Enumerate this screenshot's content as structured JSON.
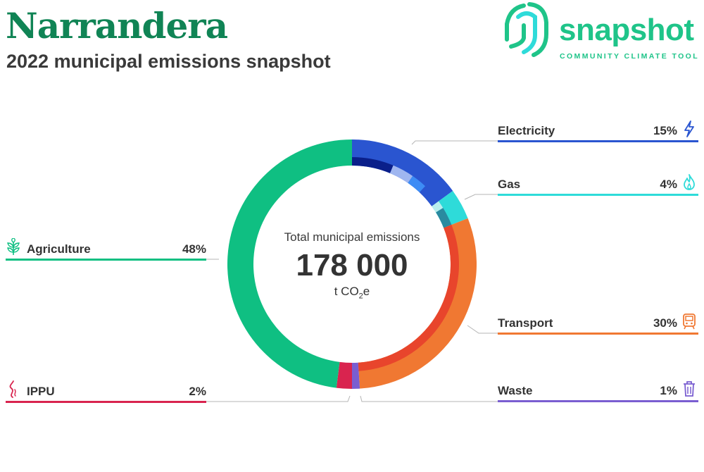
{
  "header": {
    "title": "Narrandera",
    "subtitle": "2022 municipal emissions snapshot"
  },
  "logo": {
    "word": "snapshot",
    "tagline": "COMMUNITY CLIMATE TOOL",
    "color": "#1fc489"
  },
  "center": {
    "label": "Total municipal emissions",
    "value": "178 000",
    "unit_prefix": "t CO",
    "unit_sub": "2",
    "unit_suffix": "e"
  },
  "categories": {
    "electricity": {
      "label": "Electricity",
      "percent": "15%",
      "icon": "lightning-icon",
      "color": "#2a55d0"
    },
    "gas": {
      "label": "Gas",
      "percent": "4%",
      "icon": "flame-icon",
      "color": "#2edbd9"
    },
    "transport": {
      "label": "Transport",
      "percent": "30%",
      "icon": "train-icon",
      "color": "#f07832"
    },
    "waste": {
      "label": "Waste",
      "percent": "1%",
      "icon": "trash-icon",
      "color": "#7a5ed1"
    },
    "agriculture": {
      "label": "Agriculture",
      "percent": "48%",
      "icon": "leaf-icon",
      "color": "#0fbf82"
    },
    "ippu": {
      "label": "IPPU",
      "percent": "2%",
      "icon": "smoke-icon",
      "color": "#d9244f"
    }
  },
  "chart_data": {
    "type": "pie",
    "style": "donut",
    "title": "Total municipal emissions",
    "total": 178000,
    "unit": "t CO2e",
    "series": [
      {
        "name": "Electricity",
        "value": 15,
        "color": "#2a55d0"
      },
      {
        "name": "Gas",
        "value": 4,
        "color": "#2edbd9"
      },
      {
        "name": "Transport",
        "value": 30,
        "color": "#f07832"
      },
      {
        "name": "Waste",
        "value": 1,
        "color": "#7a5ed1"
      },
      {
        "name": "IPPU",
        "value": 2,
        "color": "#d9244f"
      },
      {
        "name": "Agriculture",
        "value": 48,
        "color": "#0fbf82"
      }
    ],
    "inner_sub_segments": [
      {
        "parent": "Electricity",
        "share": 0.42,
        "color": "#0a1f8a"
      },
      {
        "parent": "Electricity",
        "share": 0.22,
        "color": "#9fb6f0"
      },
      {
        "parent": "Electricity",
        "share": 0.16,
        "color": "#3d8cf5"
      },
      {
        "parent": "Electricity",
        "share": 0.2,
        "color": "#2a55d0"
      },
      {
        "parent": "Gas",
        "share": 0.3,
        "color": "#b8eeee"
      },
      {
        "parent": "Gas",
        "share": 0.7,
        "color": "#2a8aa0"
      },
      {
        "parent": "Transport",
        "share": 1.0,
        "color": "#e8452c"
      }
    ]
  }
}
